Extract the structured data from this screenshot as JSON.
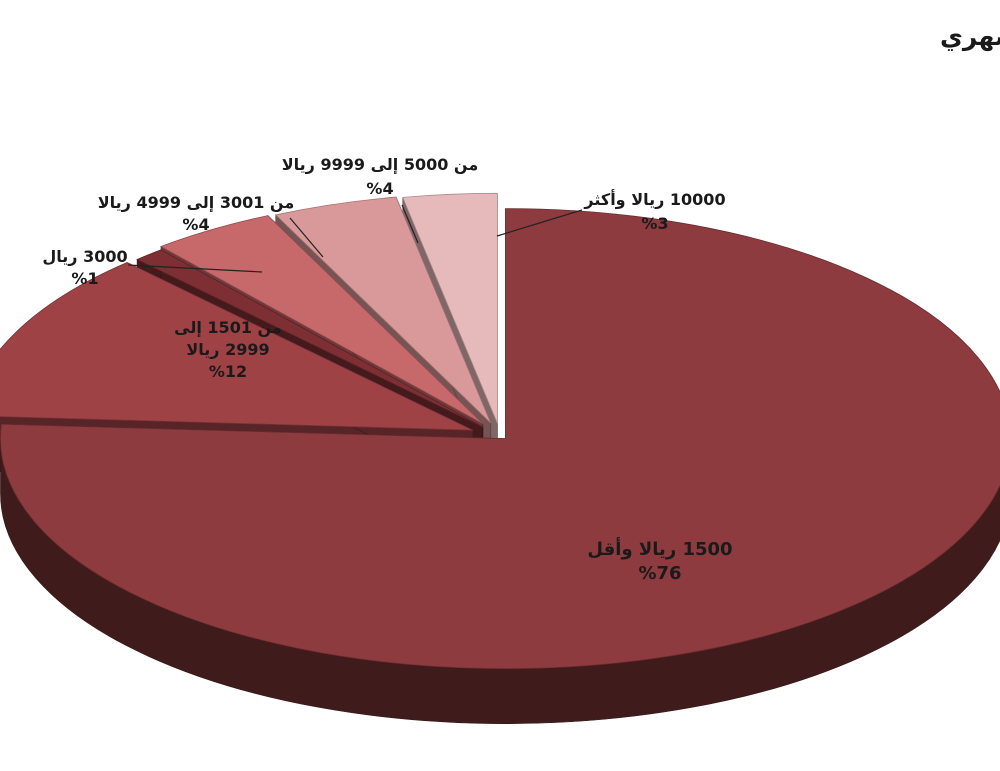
{
  "chart_data": {
    "type": "pie",
    "title": "توزيع الأجانب في القطاع الخاص السعودي حسب فئة الراتب الشهري",
    "slices": [
      {
        "label_lines": [
          "1500 ريالا وأقل"
        ],
        "value": 76,
        "value_label": "%76",
        "color": "#8d3b3f"
      },
      {
        "label_lines": [
          "من 1501 إلى",
          "2999 ريالا"
        ],
        "value": 12,
        "value_label": "%12",
        "color": "#9e4246"
      },
      {
        "label_lines": [
          "3000 ريال"
        ],
        "value": 1,
        "value_label": "%1",
        "color": "#7e2f33"
      },
      {
        "label_lines": [
          "من 3001 إلى 4999 ريالا"
        ],
        "value": 4,
        "value_label": "%4",
        "color": "#c7686b"
      },
      {
        "label_lines": [
          "من 5000 إلى 9999 ريالا"
        ],
        "value": 4,
        "value_label": "%4",
        "color": "#d99899"
      },
      {
        "label_lines": [
          "10000 ريالا وأكثر"
        ],
        "value": 3,
        "value_label": "%3",
        "color": "#e6babb"
      }
    ]
  }
}
